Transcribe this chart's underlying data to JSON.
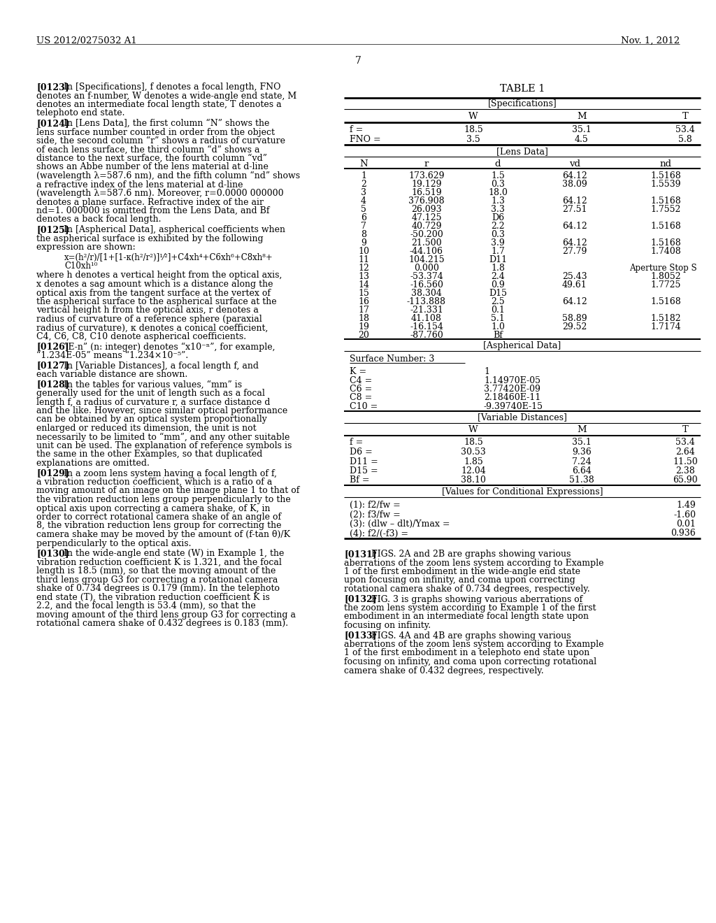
{
  "header_left": "US 2012/0275032 A1",
  "header_right": "Nov. 1, 2012",
  "page_number": "7",
  "background_color": "#ffffff",
  "left_paragraphs": [
    {
      "tag": "[0123]",
      "text": "In [Specifications], f denotes a focal length, FNO denotes an f-number, W denotes a wide-angle end state, M denotes an intermediate focal length state, T denotes a telephoto end state."
    },
    {
      "tag": "[0124]",
      "text": "In [Lens Data], the first column “N” shows the lens surface number counted in order from the object side, the second column “r” shows a radius of curvature of each lens surface, the third column “d” shows a distance to the next surface, the fourth column “vd” shows an Abbe number of the lens material at d-line (wavelength λ=587.6 nm), and the fifth column “nd” shows a refractive index of the lens material at d-line (wavelength λ=587.6 nm). Moreover, r=0.0000 000000 denotes a plane surface. Refractive index of the air nd=1. 000000 is omitted from the Lens Data, and Bf denotes a back focal length."
    },
    {
      "tag": "[0125]",
      "text": "In [Aspherical Data], aspherical coefficients when the aspherical surface is exhibited by the following expression are shown:"
    },
    {
      "tag": "[0126]",
      "text": "“E-n” (n: integer) denotes “x10⁻ⁿ”, for example, “1.234E-05” means “1.234×10⁻⁵”."
    },
    {
      "tag": "[0127]",
      "text": "In [Variable Distances], a focal length f, and each variable distance are shown."
    },
    {
      "tag": "[0128]",
      "text": "In the tables for various values, “mm” is generally used for the unit of length such as a focal length f, a radius of curvature r, a surface distance d and the like. However, since similar optical performance can be obtained by an optical system proportionally enlarged or reduced its dimension, the unit is not necessarily to be limited to “mm”, and any other suitable unit can be used. The explanation of reference symbols is the same in the other Examples, so that duplicated explanations are omitted."
    },
    {
      "tag": "[0129]",
      "text": "In a zoom lens system having a focal length of f, a vibration reduction coefficient, which is a ratio of a moving amount of an image on the image plane 1 to that of the vibration reduction lens group perpendicularly to the optical axis upon correcting a camera shake, of K, in order to correct rotational camera shake of an angle of 8, the vibration reduction lens group for correcting the camera shake may be moved by the amount of (f-tan θ)/K perpendicularly to the optical axis."
    },
    {
      "tag": "[0130]",
      "text": "In the wide-angle end state (W) in Example 1, the vibration reduction coefficient K is 1.321, and the focal length is 18.5 (mm), so that the moving amount of the third lens group G3 for correcting a rotational camera shake of 0.734 degrees is 0.179 (mm). In the telephoto end state (T), the vibration reduction coefficient K is 2.2, and the focal length is 53.4 (mm), so that the moving amount of the third lens group G3 for correcting a rotational camera shake of 0.432 degrees is 0.183 (mm)."
    }
  ],
  "formula_line1": "x=(h²/r)/[1+[1-κ(h²/r²)]¹⁄²]+C4xh⁴+C6xh⁶+C8xh⁸+",
  "formula_line2": "C10xh¹⁰",
  "where_text": "where h denotes a vertical height from the optical axis, x denotes a sag amount which is a distance along the optical axis from the tangent surface at the vertex of the aspherical surface to the aspherical surface at the vertical height h from the optical axis, r denotes a radius of curvature of a reference sphere (paraxial radius of curvature), κ denotes a conical coefficient, C4, C6, C8, C10 denote aspherical coefficients.",
  "table_title": "TABLE 1",
  "spec_header": "[Specifications]",
  "spec_rows": [
    [
      "f =",
      "18.5",
      "35.1",
      "53.4"
    ],
    [
      "FNO =",
      "3.5",
      "4.5",
      "5.8"
    ]
  ],
  "lens_header": "[Lens Data]",
  "lens_rows": [
    [
      "1",
      "173.629",
      "1.5",
      "64.12",
      "1.5168"
    ],
    [
      "2",
      "19.129",
      "0.3",
      "38.09",
      "1.5539"
    ],
    [
      "3",
      "16.519",
      "18.0",
      "",
      ""
    ],
    [
      "4",
      "376.908",
      "1.3",
      "64.12",
      "1.5168"
    ],
    [
      "5",
      "26.093",
      "3.3",
      "27.51",
      "1.7552"
    ],
    [
      "6",
      "47.125",
      "D6",
      "",
      ""
    ],
    [
      "7",
      "40.729",
      "2.2",
      "64.12",
      "1.5168"
    ],
    [
      "8",
      "-50.200",
      "0.3",
      "",
      ""
    ],
    [
      "9",
      "21.500",
      "3.9",
      "64.12",
      "1.5168"
    ],
    [
      "10",
      "-44.106",
      "1.7",
      "27.79",
      "1.7408"
    ],
    [
      "11",
      "104.215",
      "D11",
      "",
      ""
    ],
    [
      "12",
      "0.000",
      "1.8",
      "",
      "Aperture Stop S"
    ],
    [
      "13",
      "-53.374",
      "2.4",
      "25.43",
      "1.8052"
    ],
    [
      "14",
      "-16.560",
      "0.9",
      "49.61",
      "1.7725"
    ],
    [
      "15",
      "38.304",
      "D15",
      "",
      ""
    ],
    [
      "16",
      "-113.888",
      "2.5",
      "64.12",
      "1.5168"
    ],
    [
      "17",
      "-21.331",
      "0.1",
      "",
      ""
    ],
    [
      "18",
      "41.108",
      "5.1",
      "58.89",
      "1.5182"
    ],
    [
      "19",
      "-16.154",
      "1.0",
      "29.52",
      "1.7174"
    ],
    [
      "20",
      "-87.760",
      "Bf",
      "",
      ""
    ]
  ],
  "asph_header": "[Aspherical Data]",
  "asph_surface": "Surface Number: 3",
  "asph_rows": [
    [
      "K =",
      "1"
    ],
    [
      "C4 =",
      "1.14970E-05"
    ],
    [
      "C6 =",
      "3.77420E-09"
    ],
    [
      "C8 =",
      "2.18460E-11"
    ],
    [
      "C10 =",
      "-9.39740E-15"
    ]
  ],
  "var_header": "[Variable Distances]",
  "var_rows": [
    [
      "f =",
      "18.5",
      "35.1",
      "53.4"
    ],
    [
      "D6 =",
      "30.53",
      "9.36",
      "2.64"
    ],
    [
      "D11 =",
      "1.85",
      "7.24",
      "11.50"
    ],
    [
      "D15 =",
      "12.04",
      "6.64",
      "2.38"
    ],
    [
      "Bf =",
      "38.10",
      "51.38",
      "65.90"
    ]
  ],
  "cond_header": "[Values for Conditional Expressions]",
  "cond_rows": [
    [
      "(1): f2/fw =",
      "1.49"
    ],
    [
      "(2): f3/fw =",
      "-1.60"
    ],
    [
      "(3): (dlw – dlt)/Ymax =",
      "0.01"
    ],
    [
      "(4): f2/(-f3) =",
      "0.936"
    ]
  ],
  "right_paragraphs": [
    {
      "tag": "[0131]",
      "text": "FIGS. 2A and 2B are graphs showing various aberrations of the zoom lens system according to Example 1 of the first embodiment in the wide-angle end state upon focusing on infinity, and coma upon correcting rotational camera shake of 0.734 degrees, respectively."
    },
    {
      "tag": "[0132]",
      "text": "FIG. 3 is graphs showing various aberrations of the zoom lens system according to Example 1 of the first embodiment in an intermediate focal length state upon focusing on infinity."
    },
    {
      "tag": "[0133]",
      "text": "FIGS. 4A and 4B are graphs showing various aberrations of the zoom lens system according to Example 1 of the first embodiment in a telephoto end state upon focusing on infinity, and coma upon correcting rotational camera shake of 0.432 degrees, respectively."
    }
  ]
}
